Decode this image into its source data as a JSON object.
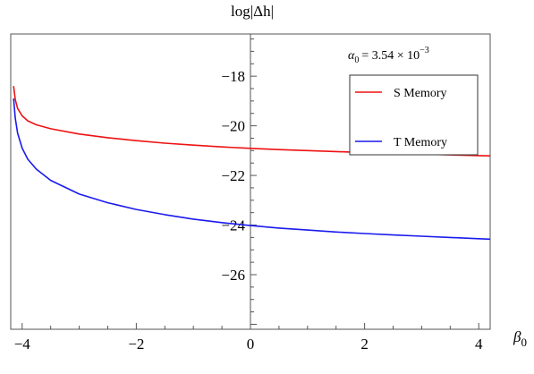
{
  "chart_data": {
    "type": "line",
    "ylabel": "log|Δh|",
    "xlabel": "β",
    "xlabel_sub": "0",
    "annotation": {
      "alpha_symbol": "α",
      "alpha_sub": "0",
      "equals": "= 3.54 × 10",
      "exponent": "−3"
    },
    "xlim": [
      -4.2,
      4.2
    ],
    "ylim": [
      -28.2,
      -16.3
    ],
    "xticks": [
      {
        "value": -4,
        "label": "−4"
      },
      {
        "value": -2,
        "label": "−2"
      },
      {
        "value": 0,
        "label": "0"
      },
      {
        "value": 2,
        "label": "2"
      },
      {
        "value": 4,
        "label": "4"
      }
    ],
    "yticks": [
      {
        "value": -18,
        "label": "−18"
      },
      {
        "value": -20,
        "label": "−20"
      },
      {
        "value": -22,
        "label": "−22"
      },
      {
        "value": -24,
        "label": "−24"
      },
      {
        "value": -26,
        "label": "−26"
      }
    ],
    "grid": false,
    "legend_position": "top-right",
    "series": [
      {
        "name": "S Memory",
        "color": "#ee1111",
        "x": [
          -4.15,
          -4.12,
          -4.08,
          -4.0,
          -3.9,
          -3.75,
          -3.5,
          -3.0,
          -2.5,
          -2.0,
          -1.5,
          -1.0,
          -0.5,
          0.0,
          0.5,
          1.0,
          1.5,
          2.0,
          2.5,
          3.0,
          3.5,
          4.0,
          4.2
        ],
        "values": [
          -18.4,
          -18.95,
          -19.3,
          -19.6,
          -19.8,
          -19.96,
          -20.12,
          -20.33,
          -20.48,
          -20.6,
          -20.7,
          -20.78,
          -20.85,
          -20.91,
          -20.96,
          -21.0,
          -21.04,
          -21.08,
          -21.11,
          -21.14,
          -21.17,
          -21.2,
          -21.21
        ]
      },
      {
        "name": "T Memory",
        "color": "#1a1aee",
        "x": [
          -4.15,
          -4.12,
          -4.08,
          -4.0,
          -3.9,
          -3.75,
          -3.5,
          -3.0,
          -2.5,
          -2.0,
          -1.5,
          -1.0,
          -0.5,
          0.0,
          0.5,
          1.0,
          1.5,
          2.0,
          2.5,
          3.0,
          3.5,
          4.0,
          4.2
        ],
        "values": [
          -18.9,
          -19.7,
          -20.3,
          -20.9,
          -21.35,
          -21.75,
          -22.2,
          -22.75,
          -23.1,
          -23.37,
          -23.58,
          -23.76,
          -23.9,
          -24.02,
          -24.12,
          -24.2,
          -24.28,
          -24.34,
          -24.4,
          -24.45,
          -24.5,
          -24.55,
          -24.57
        ]
      }
    ]
  }
}
